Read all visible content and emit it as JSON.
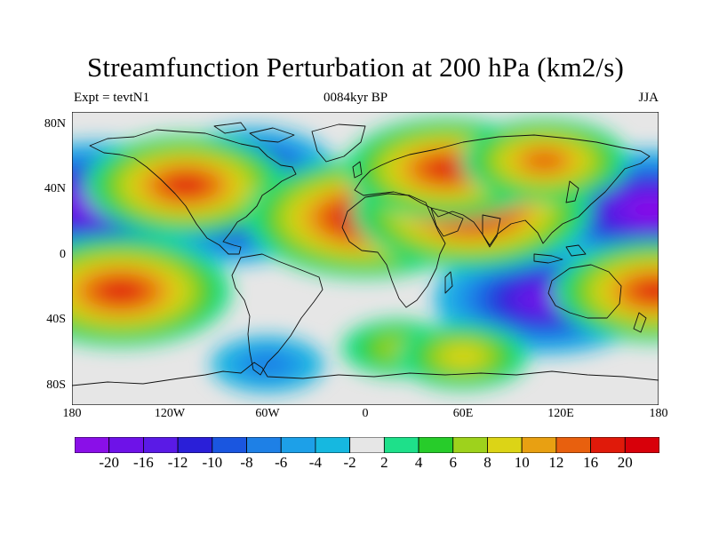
{
  "title": "Streamfunction Perturbation at 200 hPa (km2/s)",
  "left_label": "Expt = tevtN1",
  "center_label": "0084kyr BP",
  "right_label": "JJA",
  "lat_ticks": [
    "80N",
    "40N",
    "0",
    "40S",
    "80S"
  ],
  "lon_ticks": [
    "180",
    "120W",
    "60W",
    "0",
    "60E",
    "120E",
    "180"
  ],
  "colorbar": {
    "labels": [
      "-20",
      "-16",
      "-12",
      "-10",
      "-8",
      "-6",
      "-4",
      "-2",
      "2",
      "4",
      "6",
      "8",
      "10",
      "12",
      "16",
      "20"
    ],
    "colors": [
      "#8a0fe8",
      "#6e12e8",
      "#5a1ae6",
      "#2a1fd8",
      "#1a56e0",
      "#1e80e6",
      "#1da0e8",
      "#16b8e0",
      "#e6e6e6",
      "#1ee08a",
      "#27cc2a",
      "#9ed21c",
      "#dcd416",
      "#e8a012",
      "#e8600e",
      "#e01a0a",
      "#d8000a"
    ]
  },
  "chart_data": {
    "type": "heatmap",
    "title": "Streamfunction Perturbation at 200 hPa (km2/s)",
    "variable": "Streamfunction Perturbation",
    "level": "200 hPa",
    "units": "km2/s",
    "experiment": "tevtN1",
    "time": "0084kyr BP",
    "season": "JJA",
    "x_range": [
      -180,
      180
    ],
    "y_range": [
      -90,
      90
    ],
    "contour_levels": [
      -20,
      -16,
      -12,
      -10,
      -8,
      -6,
      -4,
      -2,
      2,
      4,
      6,
      8,
      10,
      12,
      16,
      20
    ],
    "features": [
      {
        "lon": -165,
        "lat": 35,
        "value": -20
      },
      {
        "lon": 175,
        "lat": 30,
        "value": -20
      },
      {
        "lon": 110,
        "lat": -25,
        "value": -18
      },
      {
        "lon": -70,
        "lat": 55,
        "value": -12
      },
      {
        "lon": -80,
        "lat": 20,
        "value": -10
      },
      {
        "lon": -60,
        "lat": -65,
        "value": -6
      },
      {
        "lon": -110,
        "lat": 45,
        "value": 16
      },
      {
        "lon": 0,
        "lat": 25,
        "value": 20
      },
      {
        "lon": 65,
        "lat": 30,
        "value": 20
      },
      {
        "lon": 50,
        "lat": 55,
        "value": 16
      },
      {
        "lon": 110,
        "lat": 60,
        "value": 12
      },
      {
        "lon": -150,
        "lat": -20,
        "value": 18
      },
      {
        "lon": 178,
        "lat": -20,
        "value": 16
      },
      {
        "lon": 20,
        "lat": -55,
        "value": 6
      },
      {
        "lon": 60,
        "lat": -60,
        "value": 8
      }
    ]
  }
}
